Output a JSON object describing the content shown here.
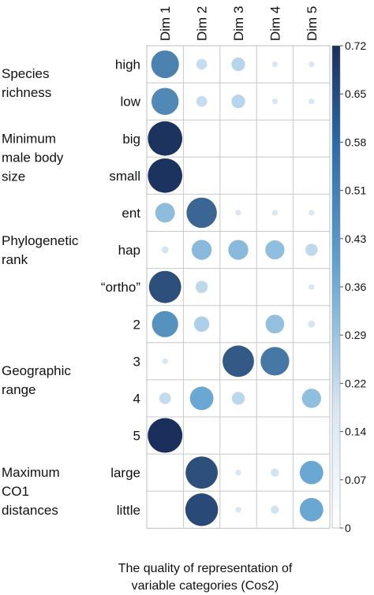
{
  "chart_data": {
    "type": "heatmap",
    "columns": [
      "Dim 1",
      "Dim 2",
      "Dim 3",
      "Dim 4",
      "Dim 5"
    ],
    "row_labels": [
      "high",
      "low",
      "big",
      "small",
      "ent",
      "hap",
      "“ortho”",
      "2",
      "3",
      "4",
      "5",
      "large",
      "little"
    ],
    "groups": [
      {
        "label_lines": [
          "Species",
          "richness"
        ],
        "rows": [
          0,
          1
        ]
      },
      {
        "label_lines": [
          "Minimum",
          "male body",
          "size"
        ],
        "rows": [
          2,
          3
        ]
      },
      {
        "label_lines": [
          "Phylogenetic",
          "rank"
        ],
        "rows": [
          4,
          5,
          6
        ]
      },
      {
        "label_lines": [
          "Geographic",
          "range"
        ],
        "rows": [
          7,
          8,
          9,
          10
        ]
      },
      {
        "label_lines": [
          "Maximum",
          "CO1",
          "distances"
        ],
        "rows": [
          11,
          12
        ]
      }
    ],
    "values": [
      [
        0.46,
        0.07,
        0.11,
        0.02,
        0.02
      ],
      [
        0.44,
        0.07,
        0.11,
        0.02,
        0.02
      ],
      [
        0.71,
        0.0,
        0.0,
        0.0,
        0.0
      ],
      [
        0.71,
        0.0,
        0.0,
        0.0,
        0.0
      ],
      [
        0.23,
        0.55,
        0.02,
        0.02,
        0.02
      ],
      [
        0.03,
        0.24,
        0.24,
        0.22,
        0.09
      ],
      [
        0.62,
        0.09,
        0.0,
        0.0,
        0.02
      ],
      [
        0.41,
        0.14,
        0.0,
        0.21,
        0.03
      ],
      [
        0.02,
        0.0,
        0.59,
        0.49,
        0.0
      ],
      [
        0.08,
        0.33,
        0.1,
        0.0,
        0.22
      ],
      [
        0.72,
        0.0,
        0.0,
        0.0,
        0.0
      ],
      [
        0.0,
        0.62,
        0.02,
        0.04,
        0.33
      ],
      [
        0.0,
        0.64,
        0.02,
        0.04,
        0.33
      ]
    ],
    "colorbar": {
      "ticks": [
        "0.72",
        "0.65",
        "0.58",
        "0.51",
        "0.43",
        "0.36",
        "0.29",
        "0.22",
        "0.14",
        "0.07",
        "0"
      ],
      "min": 0,
      "max": 0.72
    },
    "colors": {
      "low": "#ffffff",
      "mid": "#5fa2d0",
      "high": "#1a2f5c"
    },
    "caption_lines": [
      "The quality of representation of",
      "variable categories (Cos2)"
    ]
  }
}
